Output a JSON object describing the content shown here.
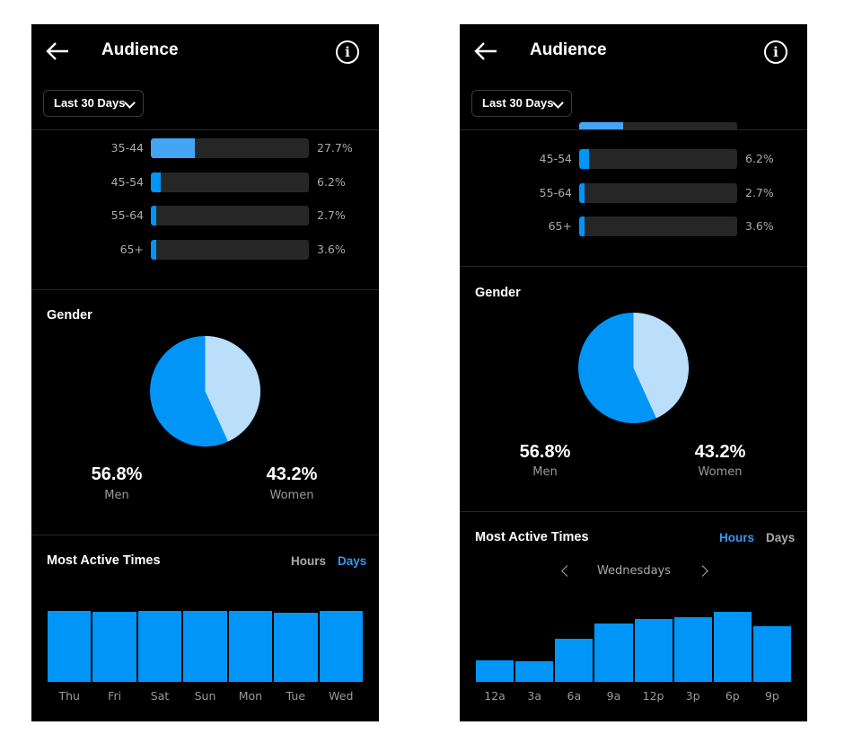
{
  "header": {
    "title": "Audience",
    "info_icon": "info-icon",
    "back_icon": "back-arrow-icon"
  },
  "date_range": {
    "selected": "Last 30 Days"
  },
  "colors": {
    "accent": "#0095f6",
    "light_blue": "#bbdefb",
    "track": "#262626",
    "active_toggle": "#3897f0"
  },
  "left": {
    "age_ranges": [
      {
        "label": "35-44",
        "percent": "27.7%",
        "value": 27.7
      },
      {
        "label": "45-54",
        "percent": "6.2%",
        "value": 6.2
      },
      {
        "label": "55-64",
        "percent": "2.7%",
        "value": 2.7
      },
      {
        "label": "65+",
        "percent": "3.6%",
        "value": 3.6
      }
    ],
    "gender": {
      "title": "Gender",
      "men": {
        "value": "56.8%",
        "label": "Men",
        "share": 0.568
      },
      "women": {
        "value": "43.2%",
        "label": "Women",
        "share": 0.432
      }
    },
    "active_times": {
      "title": "Most Active Times",
      "toggle_hours": "Hours",
      "toggle_days": "Days",
      "selected": "Days",
      "chart_data": {
        "type": "bar",
        "categories": [
          "Thu",
          "Fri",
          "Sat",
          "Sun",
          "Mon",
          "Tue",
          "Wed"
        ],
        "values": [
          100,
          99,
          100,
          100,
          100,
          98,
          100
        ]
      }
    }
  },
  "right": {
    "age_ranges": [
      {
        "label": "45-54",
        "percent": "6.2%",
        "value": 6.2
      },
      {
        "label": "55-64",
        "percent": "2.7%",
        "value": 2.7
      },
      {
        "label": "65+",
        "percent": "3.6%",
        "value": 3.6
      }
    ],
    "gender": {
      "title": "Gender",
      "men": {
        "value": "56.8%",
        "label": "Men",
        "share": 0.568
      },
      "women": {
        "value": "43.2%",
        "label": "Women",
        "share": 0.432
      }
    },
    "active_times": {
      "title": "Most Active Times",
      "toggle_hours": "Hours",
      "toggle_days": "Days",
      "selected": "Hours",
      "day": "Wednesdays",
      "chart_data": {
        "type": "bar",
        "categories": [
          "12a",
          "3a",
          "6a",
          "9a",
          "12p",
          "3p",
          "6p",
          "9p"
        ],
        "values": [
          31,
          30,
          61,
          83,
          90,
          92,
          100,
          80
        ]
      }
    }
  }
}
